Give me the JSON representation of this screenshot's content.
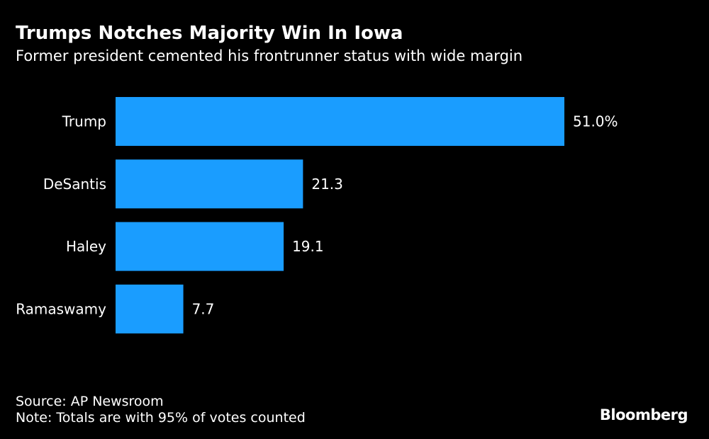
{
  "chart_data": {
    "type": "bar",
    "orientation": "horizontal",
    "title": "Trumps Notches Majority Win In Iowa",
    "subtitle": "Former president cemented his frontrunner status with wide margin",
    "categories": [
      "Trump",
      "DeSantis",
      "Haley",
      "Ramaswamy"
    ],
    "values": [
      51.0,
      21.3,
      19.1,
      7.7
    ],
    "value_labels": [
      "51.0%",
      "21.3",
      "19.1",
      "7.7"
    ],
    "xlim": [
      0,
      51.0
    ],
    "grid": false,
    "legend": "none",
    "colors": {
      "bar": "#1a9dff",
      "background": "#000000",
      "text": "#ffffff"
    }
  },
  "footer": {
    "source": "Source: AP Newsroom",
    "note": "Note: Totals are with 95% of votes counted",
    "brand": "Bloomberg"
  }
}
